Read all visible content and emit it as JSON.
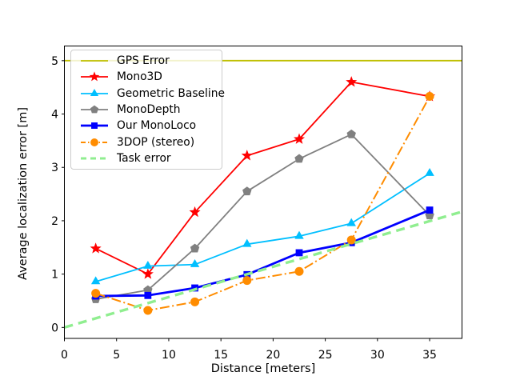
{
  "chart_data": {
    "type": "line",
    "title": "",
    "xlabel": "Distance [meters]",
    "ylabel": "Average localization error [m]",
    "xlim": [
      0,
      38.1
    ],
    "ylim": [
      -0.205,
      5.275
    ],
    "xticks": [
      0,
      5,
      10,
      15,
      20,
      25,
      30,
      35
    ],
    "yticks": [
      0,
      1,
      2,
      3,
      4,
      5
    ],
    "grid": false,
    "legend_position": "upper-left",
    "x": [
      3,
      8,
      12.5,
      17.5,
      22.5,
      27.5,
      35
    ],
    "series": [
      {
        "name": "GPS Error",
        "color": "#bfbf00",
        "style": "solid",
        "marker": "none",
        "lw": 1.8,
        "kind": "hline",
        "value": 5.0
      },
      {
        "name": "Mono3D",
        "color": "#ff0000",
        "style": "solid",
        "marker": "star",
        "lw": 1.8,
        "kind": "data",
        "values": [
          1.48,
          1.0,
          2.16,
          3.22,
          3.53,
          4.6,
          4.33
        ]
      },
      {
        "name": "Geometric Baseline",
        "color": "#00bfff",
        "style": "solid",
        "marker": "triangle",
        "lw": 1.8,
        "kind": "data",
        "values": [
          0.86,
          1.15,
          1.18,
          1.56,
          1.71,
          1.95,
          2.89
        ]
      },
      {
        "name": "MonoDepth",
        "color": "#808080",
        "style": "solid",
        "marker": "pentagon",
        "lw": 1.8,
        "kind": "data",
        "values": [
          0.53,
          0.7,
          1.48,
          2.55,
          3.16,
          3.62,
          2.1
        ]
      },
      {
        "name": "Our MonoLoco",
        "color": "#0000ff",
        "style": "solid",
        "marker": "square",
        "lw": 2.8,
        "kind": "data",
        "values": [
          0.59,
          0.6,
          0.74,
          0.99,
          1.4,
          1.59,
          2.2
        ]
      },
      {
        "name": "3DOP (stereo)",
        "color": "#ff8c00",
        "style": "dashdot",
        "marker": "circle",
        "lw": 2.0,
        "kind": "data",
        "values": [
          0.64,
          0.32,
          0.48,
          0.88,
          1.05,
          1.64,
          4.33
        ]
      },
      {
        "name": "Task error",
        "color": "#90ee90",
        "style": "dashed",
        "marker": "none",
        "lw": 3.4,
        "kind": "line",
        "px": [
          0,
          38.1
        ],
        "py": [
          0,
          2.17
        ]
      }
    ]
  }
}
